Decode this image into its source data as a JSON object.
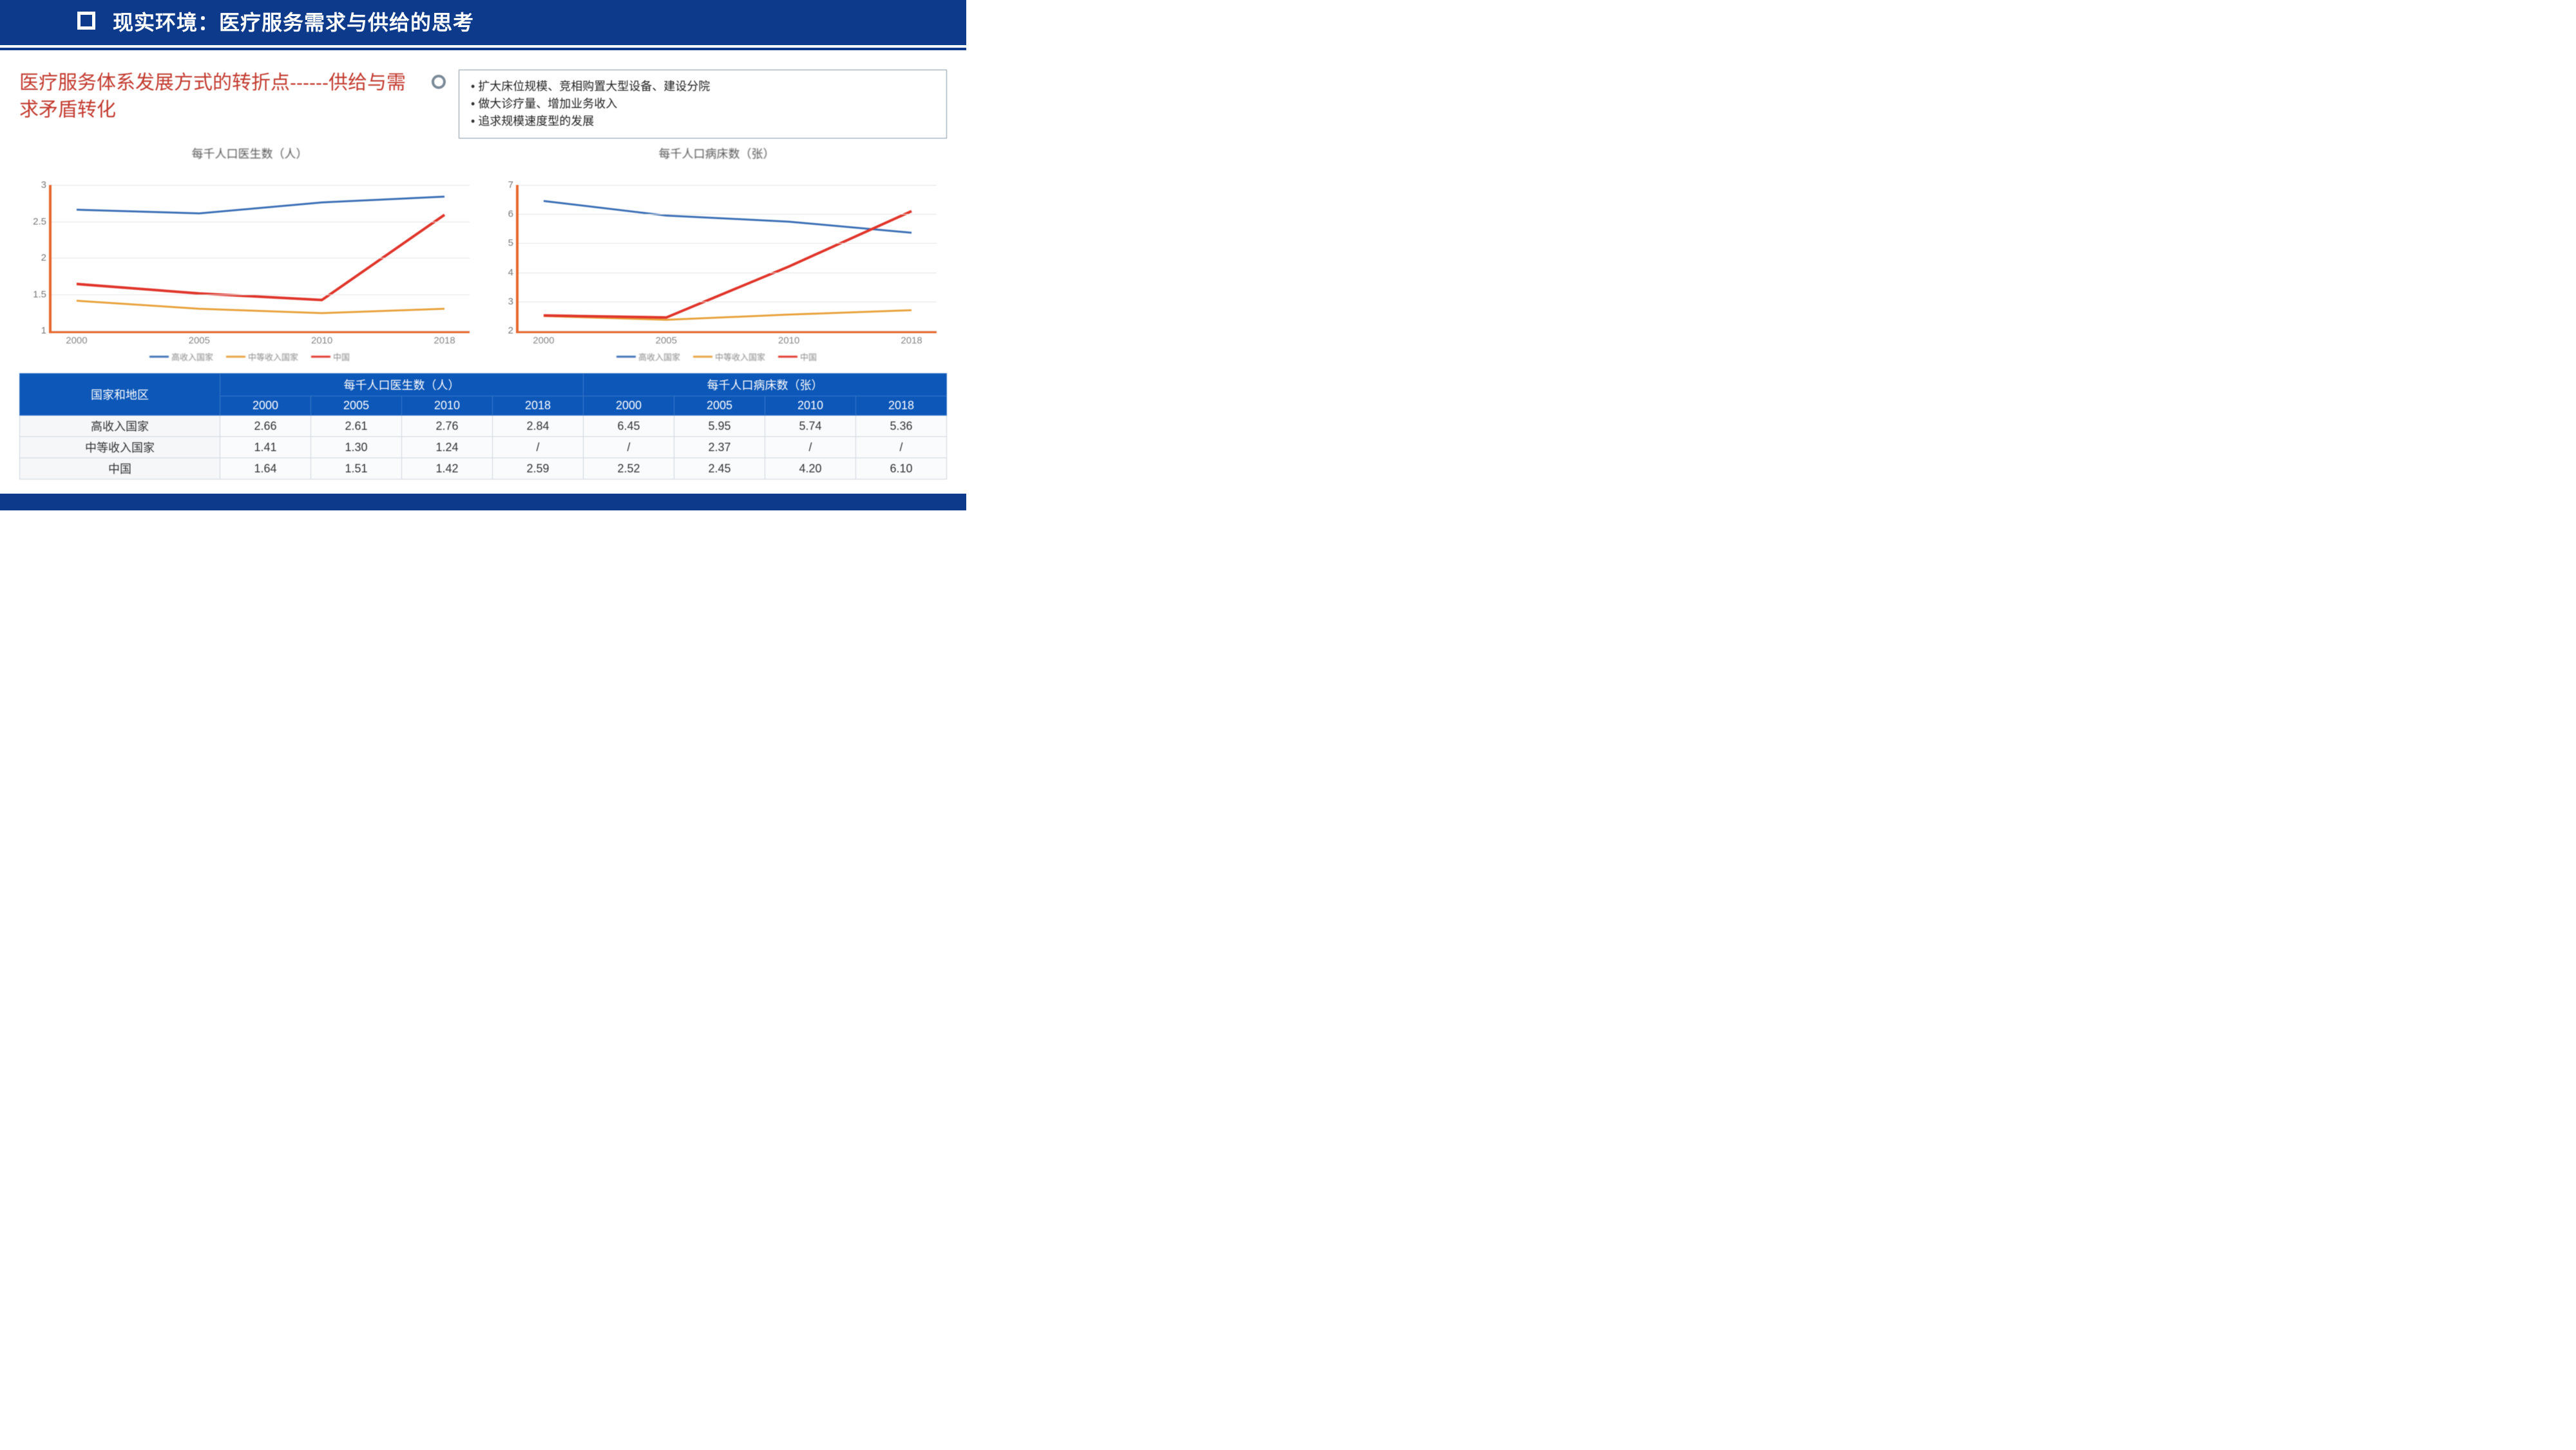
{
  "header": {
    "title": "现实环境：医疗服务需求与供给的思考"
  },
  "subtitle": "医疗服务体系发展方式的转折点------供给与需求矛盾转化",
  "bullets": [
    "扩大床位规模、竞相购置大型设备、建设分院",
    "做大诊疗量、增加业务收入",
    "追求规模速度型的发展"
  ],
  "colors": {
    "header_bg": "#0d3a8a",
    "accent_red": "#c23a2f",
    "axis_orange": "#e8672c",
    "series_high": "#3b6fb5",
    "series_mid": "#e8a23c",
    "series_china": "#e0352b",
    "table_header_bg": "#0d57b8",
    "grid": "#e4e4e4"
  },
  "chart1": {
    "type": "line",
    "title": "每千人口医生数（人）",
    "x_categories": [
      "2000",
      "2005",
      "2010",
      "2018"
    ],
    "ylim": [
      1,
      3
    ],
    "ytick_step": 0.5,
    "series": [
      {
        "name": "高收入国家",
        "color": "#3b6fb5",
        "values": [
          2.66,
          2.61,
          2.76,
          2.84
        ],
        "width": 3
      },
      {
        "name": "中等收入国家",
        "color": "#e8a23c",
        "values": [
          1.41,
          1.3,
          1.24,
          1.3
        ],
        "width": 3
      },
      {
        "name": "中国",
        "color": "#e0352b",
        "values": [
          1.64,
          1.51,
          1.42,
          2.59
        ],
        "width": 4
      }
    ],
    "legend_labels": [
      "高收入国家",
      "中等收入国家",
      "中国"
    ],
    "label_fontsize": 15
  },
  "chart2": {
    "type": "line",
    "title": "每千人口病床数（张）",
    "x_categories": [
      "2000",
      "2005",
      "2010",
      "2018"
    ],
    "ylim": [
      2,
      7
    ],
    "ytick_step": 1,
    "series": [
      {
        "name": "高收入国家",
        "color": "#3b6fb5",
        "values": [
          6.45,
          5.95,
          5.74,
          5.36
        ],
        "width": 3
      },
      {
        "name": "中等收入国家",
        "color": "#e8a23c",
        "values": [
          2.5,
          2.37,
          2.55,
          2.7
        ],
        "width": 3
      },
      {
        "name": "中国",
        "color": "#e0352b",
        "values": [
          2.52,
          2.45,
          4.2,
          6.1
        ],
        "width": 4
      }
    ],
    "legend_labels": [
      "高收入国家",
      "中等收入国家",
      "中国"
    ],
    "label_fontsize": 15
  },
  "table": {
    "corner": "国家和地区",
    "group_headers": [
      "每千人口医生数（人）",
      "每千人口病床数（张）"
    ],
    "sub_headers": [
      "2000",
      "2005",
      "2010",
      "2018",
      "2000",
      "2005",
      "2010",
      "2018"
    ],
    "rows": [
      {
        "label": "高收入国家",
        "cells": [
          "2.66",
          "2.61",
          "2.76",
          "2.84",
          "6.45",
          "5.95",
          "5.74",
          "5.36"
        ]
      },
      {
        "label": "中等收入国家",
        "cells": [
          "1.41",
          "1.30",
          "1.24",
          "/",
          "/",
          "2.37",
          "/",
          "/"
        ]
      },
      {
        "label": "中国",
        "cells": [
          "1.64",
          "1.51",
          "1.42",
          "2.59",
          "2.52",
          "2.45",
          "4.20",
          "6.10"
        ]
      }
    ]
  }
}
